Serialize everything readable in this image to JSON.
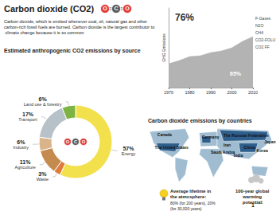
{
  "title": "Carbon dioxide (CO2)",
  "molecule": [
    "O",
    "C",
    "O"
  ],
  "description": "Carbon dioxide, which is emitted whenever coal, oil, natural gas and other carbon-rich fossil fuels are burned. Carbon dioxide is the largest contributor to climate change because it is so common",
  "chart_data": [
    {
      "type": "pie",
      "title": "Estimated anthropogenic CO2 emissions by source",
      "categories": [
        "Energy",
        "Waste",
        "Agriculture",
        "Industry",
        "Transport",
        "Land use & forestry"
      ],
      "values": [
        57,
        3,
        11,
        6,
        17,
        6
      ],
      "value_labels": [
        "57%",
        "3%",
        "11%",
        "6%",
        "17%",
        "6%"
      ],
      "colors": [
        "#f2e14c",
        "#e07b39",
        "#c48a4e",
        "#d9b48a",
        "#b7c1c8",
        "#7cb342"
      ],
      "data_labels": true
    },
    {
      "type": "area",
      "stacked": true,
      "ylabel": "GHG Emissions",
      "x": [
        1970,
        1975,
        1980,
        1985,
        1990,
        1995,
        2000,
        2005,
        2010
      ],
      "xlim": [
        1970,
        2010
      ],
      "xticks": [
        1970,
        1980,
        1990,
        2000,
        2010
      ],
      "ylim": [
        0,
        50
      ],
      "tick_labels": "x",
      "series": [
        {
          "name": "CO2 FF",
          "color": "#b3b3b3",
          "values": [
            15,
            17,
            19.5,
            20,
            22,
            23,
            25,
            29,
            32
          ]
        },
        {
          "name": "CO2-FOLU",
          "color": "#e8563f",
          "values": [
            5.9,
            5.5,
            5.5,
            5.4,
            5.3,
            5.2,
            4.9,
            5.2,
            5.0
          ]
        },
        {
          "name": "CH4",
          "color": "#f5d020",
          "values": [
            7.3,
            7.6,
            7.8,
            7.9,
            8.1,
            8.0,
            8.1,
            8.3,
            7.8
          ]
        },
        {
          "name": "N2O",
          "color": "#7cb342",
          "values": [
            2.2,
            2.4,
            2.5,
            2.6,
            2.7,
            2.8,
            2.9,
            3.0,
            3.1
          ]
        },
        {
          "name": "F-Gases",
          "color": "#4a90d9",
          "values": [
            0.1,
            0.2,
            0.3,
            0.4,
            0.5,
            0.6,
            0.7,
            0.9,
            1.0
          ]
        }
      ],
      "annotations": [
        "76%",
        "65%"
      ]
    }
  ],
  "map": {
    "title": "Carbon dioxide emissions by countries",
    "countries": [
      "Canada",
      "The United States",
      "Germany",
      "The Russian Federation",
      "Iran",
      "Saudi Arabia",
      "India",
      "China",
      "Japan",
      "Korea"
    ]
  },
  "facts": [
    {
      "label": "Average lifetime in the atmosphere:",
      "text": "80% (for 200 years), 20% (for 30,000 years)"
    },
    {
      "label": "100-year global warming potential:",
      "text": "1"
    }
  ]
}
